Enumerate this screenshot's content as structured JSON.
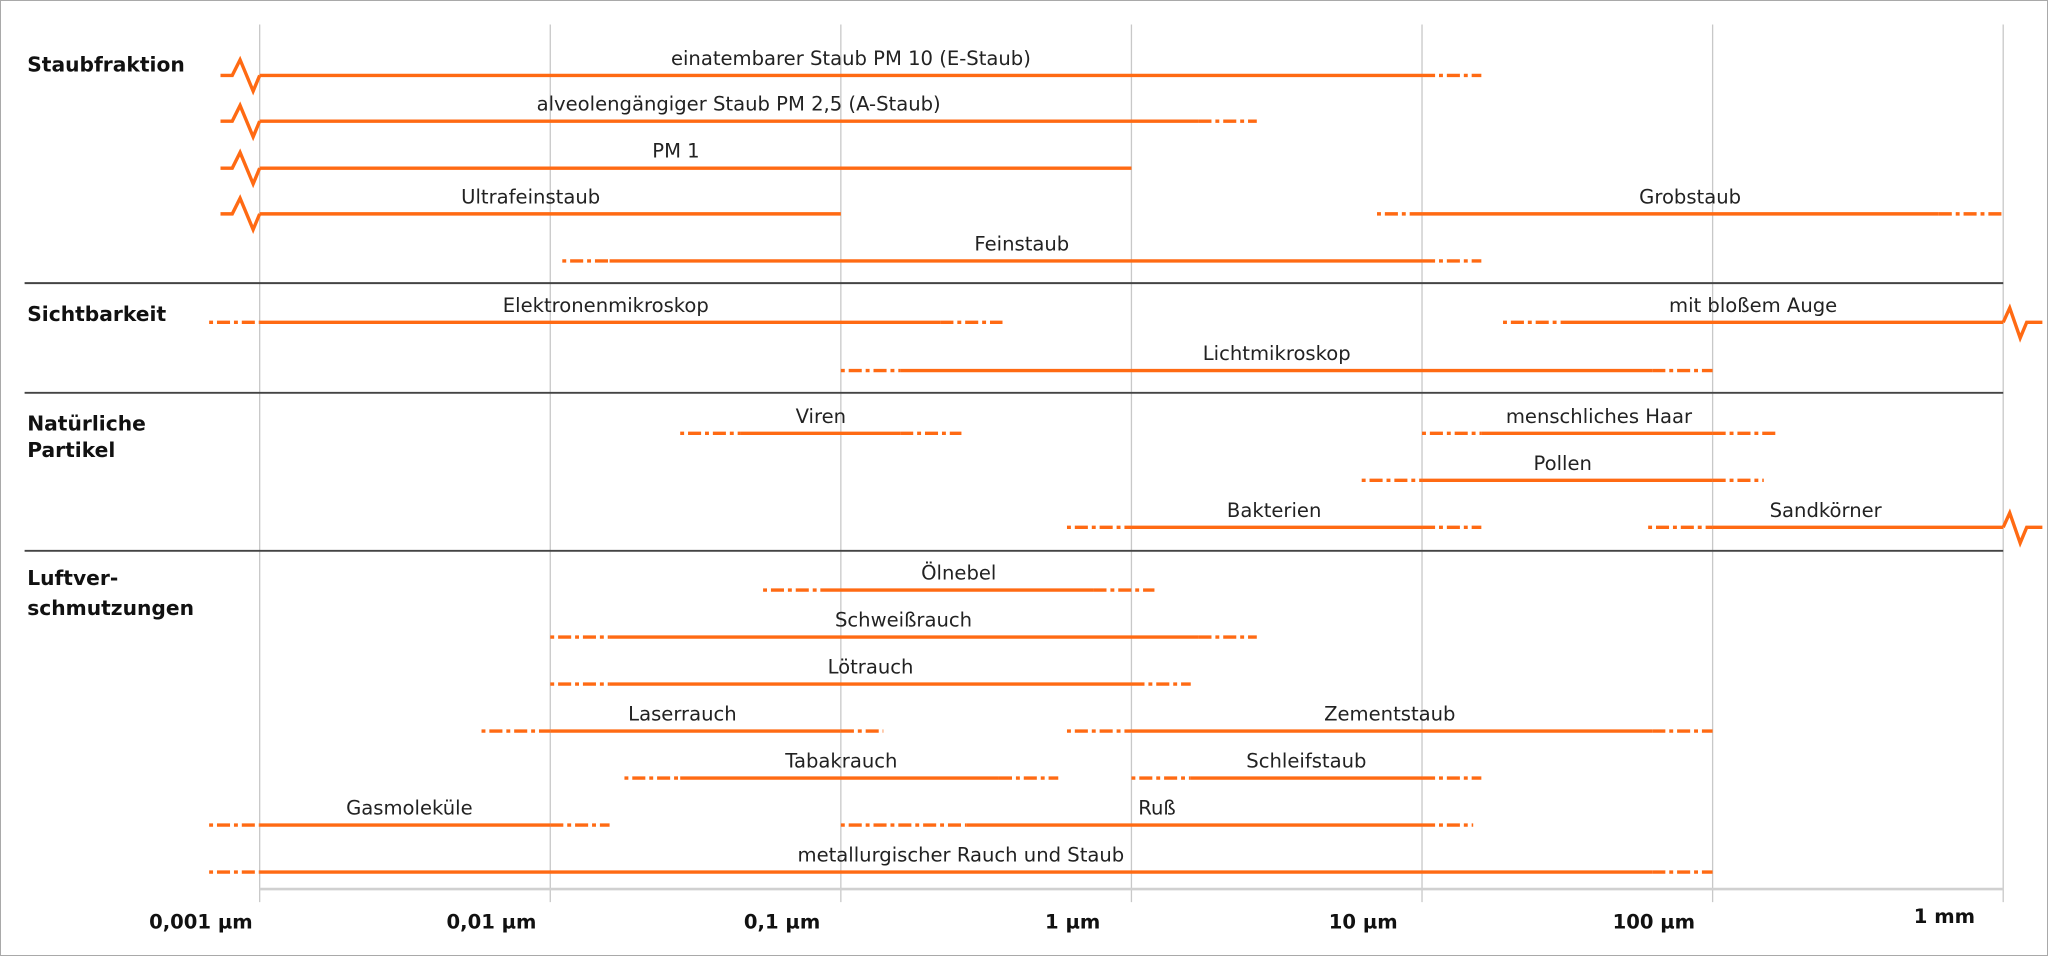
{
  "chart_data": {
    "type": "range",
    "x_scale": "log",
    "x_unit": "µm",
    "xlim": [
      0.001,
      1000
    ],
    "grid": "vertical",
    "color": "#ff6a13",
    "ticks": [
      {
        "value": 0.001,
        "label": "0,001 µm"
      },
      {
        "value": 0.01,
        "label": "0,01 µm"
      },
      {
        "value": 0.1,
        "label": "0,1 µm"
      },
      {
        "value": 1,
        "label": "1 µm"
      },
      {
        "value": 10,
        "label": "10 µm"
      },
      {
        "value": 100,
        "label": "100 µm"
      },
      {
        "value": 1000,
        "label": "1 mm"
      }
    ],
    "sections": [
      {
        "label": [
          "Staubfraktion"
        ],
        "rows": [
          [
            {
              "label": "einatembarer Staub PM 10 (E-Staub)",
              "dash_start": 0.001,
              "solid_start": 0.001,
              "solid_end": 10,
              "dash_end": 16,
              "break_left": true
            }
          ],
          [
            {
              "label": "alveolengängiger Staub PM 2,5 (A-Staub)",
              "dash_start": 0.001,
              "solid_start": 0.001,
              "solid_end": 1.7,
              "dash_end": 2.7,
              "break_left": true
            }
          ],
          [
            {
              "label": "PM 1",
              "dash_start": 0.001,
              "solid_start": 0.001,
              "solid_end": 1,
              "dash_end": 1,
              "break_left": true
            }
          ],
          [
            {
              "label": "Ultrafeinstaub",
              "dash_start": 0.001,
              "solid_start": 0.001,
              "solid_end": 0.1,
              "dash_end": 0.1,
              "break_left": true
            },
            {
              "label": "Grobstaub",
              "dash_start": 7,
              "solid_start": 10,
              "solid_end": 600,
              "dash_end": 1000
            }
          ],
          [
            {
              "label": "Feinstaub",
              "dash_start": 0.011,
              "solid_start": 0.016,
              "solid_end": 10,
              "dash_end": 16
            }
          ]
        ]
      },
      {
        "label": [
          "Sichtbarkeit"
        ],
        "rows": [
          [
            {
              "label": "Elektronenmikroskop",
              "dash_start": 0.00067,
              "solid_start": 0.001,
              "solid_end": 0.22,
              "dash_end": 0.36
            },
            {
              "label": "mit bloßem Auge",
              "dash_start": 19,
              "solid_start": 30,
              "solid_end": 1000,
              "dash_end": 1000,
              "break_right": true
            }
          ],
          [
            {
              "label": "Lichtmikroskop",
              "dash_start": 0.1,
              "solid_start": 0.16,
              "solid_end": 62,
              "dash_end": 100
            }
          ]
        ]
      },
      {
        "label": [
          "Natürliche",
          "Partikel"
        ],
        "rows": [
          [
            {
              "label": "Viren",
              "dash_start": 0.028,
              "solid_start": 0.045,
              "solid_end": 0.16,
              "dash_end": 0.26
            },
            {
              "label": "menschliches Haar",
              "dash_start": 10,
              "solid_start": 16,
              "solid_end": 100,
              "dash_end": 165
            }
          ],
          [
            {
              "label": "Pollen",
              "dash_start": 6.2,
              "solid_start": 10,
              "solid_end": 100,
              "dash_end": 150
            }
          ],
          [
            {
              "label": "Bakterien",
              "dash_start": 0.6,
              "solid_start": 1,
              "solid_end": 10,
              "dash_end": 16
            },
            {
              "label": "Sandkörner",
              "dash_start": 60,
              "solid_start": 100,
              "solid_end": 1000,
              "dash_end": 1000,
              "break_right": true
            }
          ]
        ]
      },
      {
        "label": [
          "Luftver-",
          "schmutzungen"
        ],
        "rows": [
          [
            {
              "label": "Ölnebel",
              "dash_start": 0.054,
              "solid_start": 0.085,
              "solid_end": 0.74,
              "dash_end": 1.2
            }
          ],
          [
            {
              "label": "Schweißrauch",
              "dash_start": 0.01,
              "solid_start": 0.016,
              "solid_end": 1.7,
              "dash_end": 2.7
            }
          ],
          [
            {
              "label": "Lötrauch",
              "dash_start": 0.01,
              "solid_start": 0.016,
              "solid_end": 1,
              "dash_end": 1.6
            }
          ],
          [
            {
              "label": "Laserrauch",
              "dash_start": 0.0058,
              "solid_start": 0.01,
              "solid_end": 0.1,
              "dash_end": 0.14
            },
            {
              "label": "Zementstaub",
              "dash_start": 0.6,
              "solid_start": 1,
              "solid_end": 62,
              "dash_end": 100
            }
          ],
          [
            {
              "label": "Tabakrauch",
              "dash_start": 0.018,
              "solid_start": 0.028,
              "solid_end": 0.35,
              "dash_end": 0.56
            },
            {
              "label": "Schleifstaub",
              "dash_start": 1,
              "solid_start": 1.6,
              "solid_end": 10,
              "dash_end": 16
            }
          ],
          [
            {
              "label": "Gasmoleküle",
              "dash_start": 0.00067,
              "solid_start": 0.001,
              "solid_end": 0.01,
              "dash_end": 0.016
            },
            {
              "label": "Ruß",
              "dash_start": 0.1,
              "solid_start": 0.27,
              "solid_end": 10,
              "dash_end": 15
            }
          ],
          [
            {
              "label": "metallurgischer Rauch und Staub",
              "dash_start": 0.00067,
              "solid_start": 0.001,
              "solid_end": 62,
              "dash_end": 100
            }
          ]
        ]
      }
    ]
  }
}
